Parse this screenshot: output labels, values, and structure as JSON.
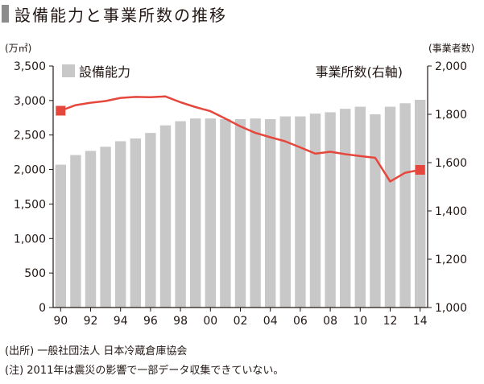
{
  "title": "設備能力と事業所数の推移",
  "notes": {
    "source": "(出所) 一般社団法人 日本冷蔵倉庫協会",
    "remark": "(注) 2011年は震災の影響で一部データ収集できていない。"
  },
  "colors": {
    "bars": "#c8c8c8",
    "line": "#e5473c",
    "axis": "#231815",
    "title_bar": "#8c8c8c"
  },
  "chart_data": {
    "type": "bar",
    "years": [
      1990,
      1991,
      1992,
      1993,
      1994,
      1995,
      1996,
      1997,
      1998,
      1999,
      2000,
      2001,
      2002,
      2003,
      2004,
      2005,
      2006,
      2007,
      2008,
      2009,
      2010,
      2011,
      2012,
      2013,
      2014
    ],
    "x_tick_labels": [
      "90",
      "92",
      "94",
      "96",
      "98",
      "00",
      "02",
      "04",
      "06",
      "08",
      "10",
      "12",
      "14"
    ],
    "y_left": {
      "unit_label": "(万㎡)",
      "range": [
        0,
        3500
      ],
      "ticks": [
        0,
        500,
        1000,
        1500,
        2000,
        2500,
        3000,
        3500
      ],
      "tick_labels": [
        "0",
        "500",
        "1,000",
        "1,500",
        "2,000",
        "2,500",
        "3,000",
        "3,500"
      ]
    },
    "y_right": {
      "unit_label": "(事業者数)",
      "range": [
        1000,
        2000
      ],
      "ticks": [
        1000,
        1200,
        1400,
        1600,
        1800,
        2000
      ],
      "tick_labels": [
        "1,000",
        "1,200",
        "1,400",
        "1,600",
        "1,800",
        "2,000"
      ]
    },
    "series": [
      {
        "name": "設備能力",
        "type": "bar",
        "axis": "left",
        "values": [
          2070,
          2210,
          2270,
          2330,
          2410,
          2450,
          2530,
          2640,
          2700,
          2740,
          2740,
          2730,
          2730,
          2740,
          2730,
          2770,
          2770,
          2810,
          2830,
          2880,
          2910,
          2800,
          2910,
          2960,
          3010
        ]
      },
      {
        "name": "事業所数(右軸)",
        "type": "line",
        "axis": "right",
        "values": [
          1815,
          1838,
          1848,
          1855,
          1868,
          1872,
          1871,
          1874,
          1850,
          1830,
          1813,
          1782,
          1750,
          1723,
          1705,
          1688,
          1663,
          1637,
          1645,
          1635,
          1627,
          1620,
          1522,
          1558,
          1570
        ]
      }
    ],
    "marked_points": [
      0,
      24
    ],
    "legend": "top-left"
  }
}
